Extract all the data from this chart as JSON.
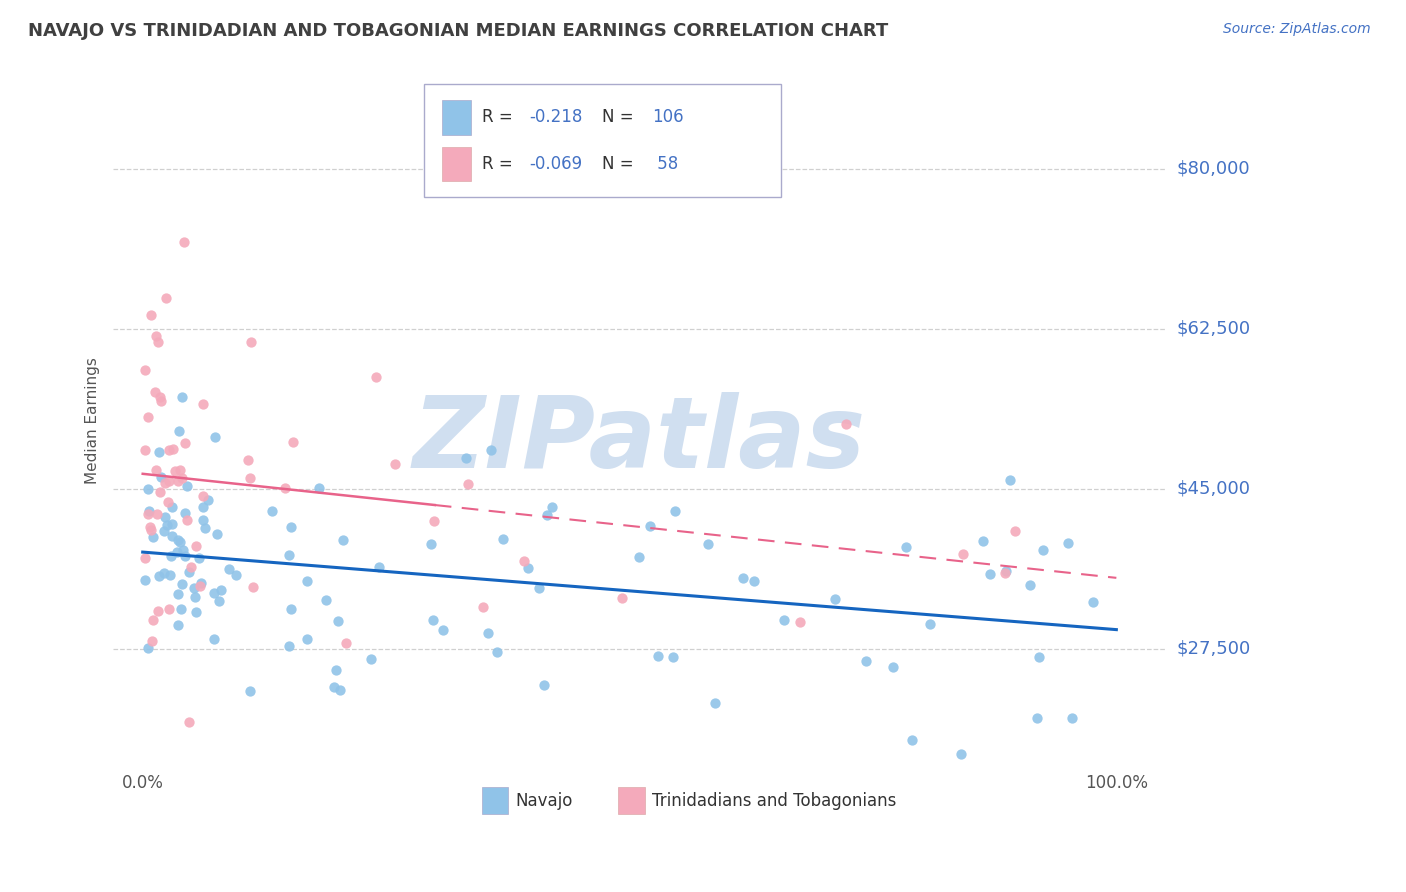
{
  "title": "NAVAJO VS TRINIDADIAN AND TOBAGONIAN MEDIAN EARNINGS CORRELATION CHART",
  "source_text": "Source: ZipAtlas.com",
  "ylabel": "Median Earnings",
  "y_tick_labels": [
    "$27,500",
    "$45,000",
    "$62,500",
    "$80,000"
  ],
  "y_tick_values": [
    27500,
    45000,
    62500,
    80000
  ],
  "ylim": [
    15000,
    90000
  ],
  "x_tick_labels": [
    "0.0%",
    "100.0%"
  ],
  "legend_labels": [
    "Navajo",
    "Trinidadians and Tobagonians"
  ],
  "navajo_color": "#90C3E8",
  "trinidadian_color": "#F4AABB",
  "navajo_line_color": "#1565C0",
  "trinidadian_line_color": "#E8638A",
  "R_navajo": -0.218,
  "N_navajo": 106,
  "R_trinidadian": -0.069,
  "N_trinidadian": 58,
  "background_color": "#ffffff",
  "grid_color": "#d0d0d0",
  "title_color": "#404040",
  "axis_label_color": "#4472c4",
  "watermark_text": "ZIPatlas",
  "watermark_color": "#d0dff0"
}
